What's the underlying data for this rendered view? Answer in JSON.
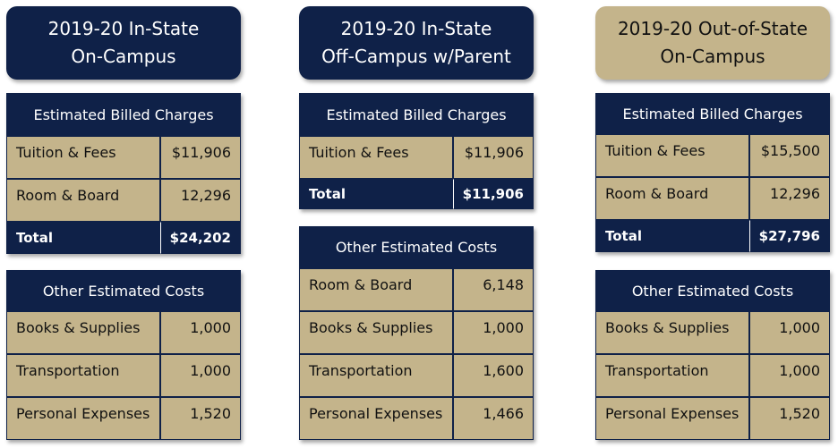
{
  "columns": [
    {
      "header_line1": "2019-20 In-State",
      "header_line2": "On-Campus",
      "billed": {
        "title": "Estimated Billed Charges",
        "rows": [
          {
            "label": "Tuition & Fees",
            "value": "$11,906"
          },
          {
            "label": "Room & Board",
            "value": "12,296"
          }
        ],
        "total_label": "Total",
        "total_value": "$24,202"
      },
      "other": {
        "title": "Other Estimated Costs",
        "rows": [
          {
            "label": "Books & Supplies",
            "value": "1,000"
          },
          {
            "label": "Transportation",
            "value": "1,000"
          },
          {
            "label": "Personal Expenses",
            "value": "1,520"
          }
        ]
      }
    },
    {
      "header_line1": "2019-20 In-State",
      "header_line2": "Off-Campus w/Parent",
      "billed": {
        "title": "Estimated Billed Charges",
        "rows": [
          {
            "label": "Tuition & Fees",
            "value": "$11,906"
          }
        ],
        "total_label": "Total",
        "total_value": "$11,906"
      },
      "other": {
        "title": "Other Estimated Costs",
        "rows": [
          {
            "label": "Room & Board",
            "value": "6,148"
          },
          {
            "label": "Books & Supplies",
            "value": "1,000"
          },
          {
            "label": "Transportation",
            "value": "1,600"
          },
          {
            "label": "Personal Expenses",
            "value": "1,466"
          }
        ]
      }
    },
    {
      "header_line1": "2019-20 Out-of-State",
      "header_line2": "On-Campus",
      "billed": {
        "title": "Estimated Billed Charges",
        "rows": [
          {
            "label": "Tuition & Fees",
            "value": "$15,500"
          },
          {
            "label": "Room & Board",
            "value": "12,296"
          }
        ],
        "total_label": "Total",
        "total_value": "$27,796"
      },
      "other": {
        "title": "Other Estimated Costs",
        "rows": [
          {
            "label": "Books & Supplies",
            "value": "1,000"
          },
          {
            "label": "Transportation",
            "value": "1,000"
          },
          {
            "label": "Personal Expenses",
            "value": "1,520"
          }
        ]
      }
    }
  ],
  "colors": {
    "navy": "#0f2148",
    "gold": "#c4b48b"
  }
}
